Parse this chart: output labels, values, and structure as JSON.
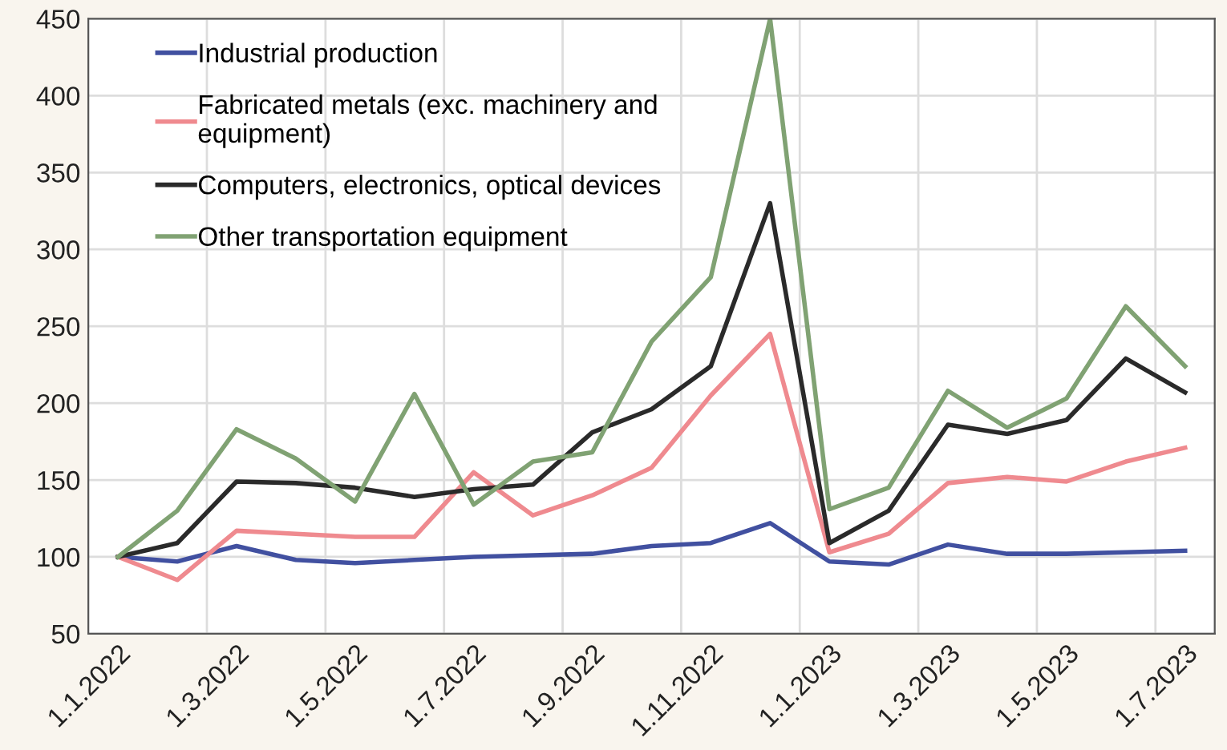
{
  "chart_data": {
    "type": "line",
    "categories": [
      "1.1.2022",
      null,
      "1.3.2022",
      null,
      "1.5.2022",
      null,
      "1.7.2022",
      null,
      "1.9.2022",
      null,
      "1.11.2022",
      null,
      "1.1.2023",
      null,
      "1.3.2023",
      null,
      "1.5.2023",
      null,
      "1.7.2023"
    ],
    "series": [
      {
        "name": "Industrial production",
        "color": "#4150a0",
        "values": [
          100,
          97,
          107,
          98,
          96,
          98,
          100,
          101,
          102,
          107,
          109,
          122,
          97,
          95,
          108,
          102,
          102,
          103,
          104
        ]
      },
      {
        "name": "Fabricated metals (exc. machinery and equipment)",
        "color": "#ef8a8f",
        "values": [
          100,
          85,
          117,
          115,
          113,
          113,
          155,
          127,
          140,
          158,
          205,
          245,
          103,
          115,
          148,
          152,
          149,
          162,
          171
        ]
      },
      {
        "name": "Computers, electronics, optical devices",
        "color": "#2a2a2a",
        "values": [
          100,
          109,
          149,
          148,
          145,
          139,
          144,
          147,
          181,
          196,
          224,
          330,
          109,
          130,
          186,
          180,
          189,
          229,
          207
        ]
      },
      {
        "name": "Other transportation equipment",
        "color": "#80a273",
        "values": [
          100,
          130,
          183,
          164,
          136,
          206,
          134,
          162,
          168,
          240,
          282,
          450,
          131,
          145,
          208,
          184,
          203,
          263,
          224
        ]
      }
    ],
    "ylim": [
      50,
      450
    ],
    "yticks": [
      50,
      100,
      150,
      200,
      250,
      300,
      350,
      400,
      450
    ],
    "grid": true,
    "legend": "top left",
    "marker": "none",
    "line_style": "solid"
  }
}
